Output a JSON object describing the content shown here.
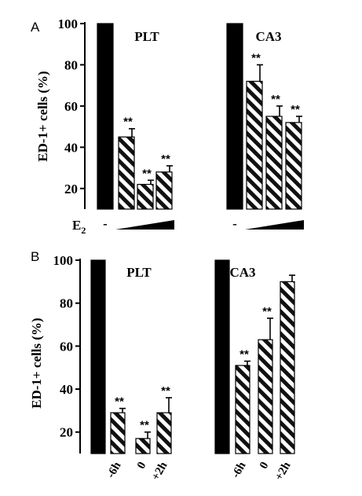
{
  "chart_data": [
    {
      "type": "bar",
      "panel": "A",
      "ylabel": "ED-1+ cells (%)",
      "ylim": [
        10,
        100
      ],
      "yticks": [
        "100",
        "80",
        "60",
        "40",
        "20"
      ],
      "treatment_label": "E",
      "treatment_sub": "2",
      "groups": [
        {
          "name": "PLT",
          "control_label": "-",
          "bars": [
            {
              "value": 100,
              "error": 0,
              "sig": "",
              "fill": "solid"
            },
            {
              "value": 45,
              "error": 4,
              "sig": "**",
              "fill": "hatched"
            },
            {
              "value": 22,
              "error": 2,
              "sig": "**",
              "fill": "hatched"
            },
            {
              "value": 28,
              "error": 3,
              "sig": "**",
              "fill": "hatched"
            }
          ]
        },
        {
          "name": "CA3",
          "control_label": "-",
          "bars": [
            {
              "value": 100,
              "error": 0,
              "sig": "",
              "fill": "solid"
            },
            {
              "value": 72,
              "error": 8,
              "sig": "**",
              "fill": "hatched"
            },
            {
              "value": 55,
              "error": 5,
              "sig": "**",
              "fill": "hatched"
            },
            {
              "value": 52,
              "error": 3,
              "sig": "**",
              "fill": "hatched"
            }
          ]
        }
      ]
    },
    {
      "type": "bar",
      "panel": "B",
      "ylabel": "ED-1+ cells (%)",
      "ylim": [
        10,
        100
      ],
      "yticks": [
        "100",
        "80",
        "60",
        "40",
        "20"
      ],
      "groups": [
        {
          "name": "PLT",
          "bars": [
            {
              "value": 100,
              "error": 0,
              "sig": "",
              "fill": "solid",
              "label": ""
            },
            {
              "value": 29,
              "error": 2,
              "sig": "**",
              "fill": "hatched",
              "label": "-6h"
            },
            {
              "value": 17,
              "error": 3,
              "sig": "**",
              "fill": "hatched",
              "label": "0"
            },
            {
              "value": 29,
              "error": 7,
              "sig": "**",
              "fill": "hatched",
              "label": "+2h"
            }
          ]
        },
        {
          "name": "CA3",
          "bars": [
            {
              "value": 100,
              "error": 0,
              "sig": "",
              "fill": "solid",
              "label": ""
            },
            {
              "value": 51,
              "error": 2,
              "sig": "**",
              "fill": "hatched",
              "label": "-6h"
            },
            {
              "value": 63,
              "error": 10,
              "sig": "**",
              "fill": "hatched",
              "label": "0"
            },
            {
              "value": 90,
              "error": 3,
              "sig": "",
              "fill": "hatched",
              "label": "+2h"
            }
          ]
        }
      ]
    }
  ]
}
